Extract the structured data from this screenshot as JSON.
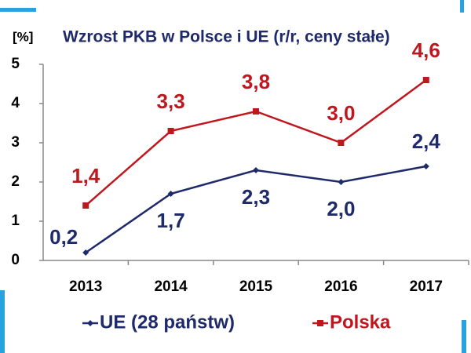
{
  "chart_data": {
    "type": "line",
    "title": "Wzrost PKB w Polsce i UE (r/r, ceny stałe)",
    "y_axis_label": "[%]",
    "categories": [
      "2013",
      "2014",
      "2015",
      "2016",
      "2017"
    ],
    "series": [
      {
        "name": "UE (28 państw)",
        "color": "#1f2a6b",
        "values": [
          0.2,
          1.7,
          2.3,
          2.0,
          2.4
        ],
        "value_labels": [
          "0,2",
          "1,7",
          "2,3",
          "2,0",
          "2,4"
        ]
      },
      {
        "name": "Polska",
        "color": "#c0161e",
        "values": [
          1.4,
          3.3,
          3.8,
          3.0,
          4.6
        ],
        "value_labels": [
          "1,4",
          "3,3",
          "3,8",
          "3,0",
          "4,6"
        ]
      }
    ],
    "ylim": [
      0,
      5
    ],
    "yticks": [
      0,
      1,
      2,
      3,
      4,
      5
    ],
    "legend": "bottom"
  }
}
